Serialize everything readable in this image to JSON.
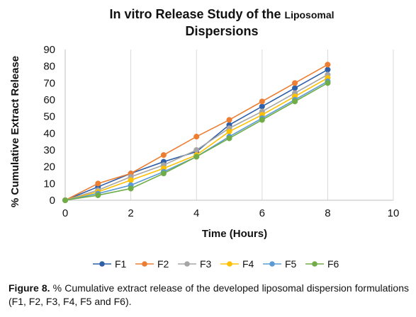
{
  "chart_data": {
    "type": "line",
    "title_line1": "In vitro Release Study of the",
    "title_line1_small": "Liposomal",
    "title_line2": "Dispersions",
    "xlabel": "Time (Hours)",
    "ylabel": "% Cumulative Extract Release",
    "xlim": [
      0,
      10
    ],
    "ylim": [
      0,
      90
    ],
    "xticks": [
      0,
      2,
      4,
      6,
      8,
      10
    ],
    "yticks": [
      0,
      10,
      20,
      30,
      40,
      50,
      60,
      70,
      80,
      90
    ],
    "grid": "vertical",
    "legend_position": "bottom",
    "x": [
      0,
      1,
      2,
      3,
      4,
      5,
      6,
      7,
      8
    ],
    "series": [
      {
        "name": "F1",
        "color": "#2E5FA8",
        "values": [
          0,
          8,
          16,
          23,
          29,
          45,
          56,
          67,
          78
        ]
      },
      {
        "name": "F2",
        "color": "#ED7D31",
        "values": [
          0,
          10,
          16,
          27,
          38,
          48,
          59,
          70,
          81
        ]
      },
      {
        "name": "F3",
        "color": "#A5A5A5",
        "values": [
          0,
          6,
          14,
          21,
          30,
          43,
          53,
          64,
          75
        ]
      },
      {
        "name": "F4",
        "color": "#FFC000",
        "values": [
          0,
          5,
          12,
          19,
          27,
          41,
          51,
          62,
          73
        ]
      },
      {
        "name": "F5",
        "color": "#5B9BD5",
        "values": [
          0,
          4,
          9,
          17,
          26,
          38,
          49,
          60,
          71
        ]
      },
      {
        "name": "F6",
        "color": "#70AD47",
        "values": [
          0,
          3,
          7,
          16,
          26,
          37,
          48,
          59,
          70
        ]
      }
    ]
  },
  "caption": {
    "label": "Figure 8.",
    "text": " % Cumulative extract release of the developed liposomal dispersion formulations (F1, F2, F3, F4, F5 and F6)."
  }
}
